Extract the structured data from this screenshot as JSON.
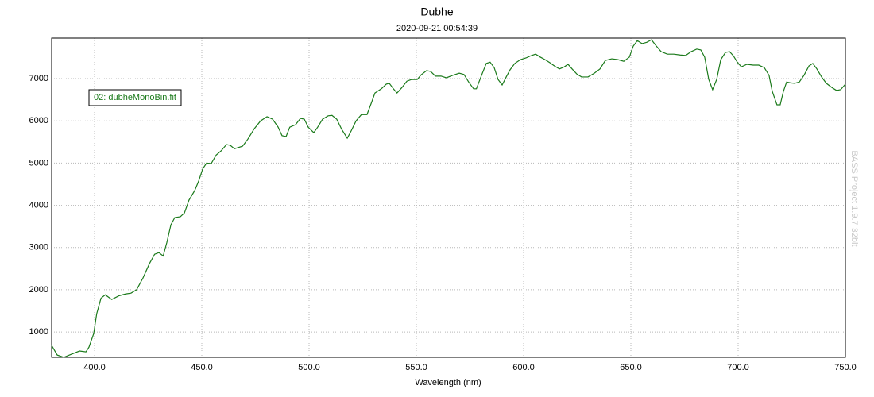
{
  "chart_data": {
    "type": "line",
    "title": "Dubhe",
    "subtitle": "2020-09-21 00:54:39",
    "x_label": "Wavelength (nm)",
    "annotation": "BASS Project 1.9.7 32bit",
    "xlim": [
      380,
      750
    ],
    "ylim": [
      400,
      7960
    ],
    "xticks": [
      {
        "value": 400,
        "label": "400.0"
      },
      {
        "value": 450,
        "label": "450.0"
      },
      {
        "value": 500,
        "label": "500.0"
      },
      {
        "value": 550,
        "label": "550.0"
      },
      {
        "value": 600,
        "label": "600.0"
      },
      {
        "value": 650,
        "label": "650.0"
      },
      {
        "value": 700,
        "label": "700.0"
      },
      {
        "value": 750,
        "label": "750.0"
      }
    ],
    "yticks": [
      1000,
      2000,
      3000,
      4000,
      5000,
      6000,
      7000
    ],
    "grid": true,
    "legend": "upper left",
    "x": [
      380,
      382.6,
      385.6,
      389,
      393,
      396,
      397.4,
      399.6,
      401,
      403,
      405,
      408,
      411.5,
      414.4,
      417,
      419.6,
      422.6,
      425.6,
      428,
      430,
      432,
      433.7,
      435.6,
      437.4,
      440,
      441.9,
      444,
      446.7,
      448.5,
      450.4,
      452.2,
      454.4,
      456.7,
      459,
      461.5,
      463.3,
      465.2,
      469,
      471.5,
      474.4,
      477.4,
      480.4,
      483,
      485.6,
      487.4,
      489.3,
      491,
      493.7,
      496,
      497.8,
      499.6,
      502.2,
      504,
      506.3,
      508.9,
      510.7,
      512.9,
      515.2,
      517.8,
      519.6,
      521.9,
      524.4,
      527,
      529,
      530.7,
      533.7,
      536,
      537.4,
      539.3,
      541,
      543.3,
      545.6,
      547.8,
      550.4,
      552.2,
      554.8,
      556.7,
      558.9,
      561.5,
      564,
      567,
      570,
      572.2,
      574.4,
      576.7,
      578,
      580.4,
      582.6,
      584.4,
      586.3,
      588.1,
      590,
      591.9,
      593.7,
      595.9,
      598.5,
      601.1,
      603.3,
      605.6,
      607.8,
      610,
      612.2,
      614.4,
      616.7,
      619,
      620.7,
      622.6,
      624.8,
      627,
      630,
      633,
      635.6,
      638.1,
      641.1,
      644,
      646.7,
      649.3,
      651.1,
      653,
      655.2,
      657.4,
      659.6,
      661.9,
      664.1,
      667,
      670,
      673,
      675.6,
      678.1,
      680.7,
      682.6,
      684.4,
      686.3,
      688.1,
      690,
      691.9,
      694.1,
      696,
      697.8,
      699.6,
      701.5,
      704.1,
      707,
      709.6,
      712.2,
      714.4,
      715.9,
      718.1,
      719.6,
      721.1,
      722.6,
      724.4,
      726.3,
      728.5,
      730.7,
      733,
      734.8,
      736.7,
      738.9,
      741.1,
      743.7,
      745.9,
      747.8,
      750
    ],
    "series": [
      {
        "name": "02: dubheMonoBin.fit",
        "color": "#1b7a1b",
        "values": [
          680,
          455,
          400,
          470,
          550,
          530,
          640,
          960,
          1430,
          1800,
          1880,
          1770,
          1860,
          1900,
          1920,
          2000,
          2280,
          2620,
          2840,
          2880,
          2800,
          3120,
          3540,
          3710,
          3730,
          3820,
          4120,
          4350,
          4570,
          4860,
          5000,
          4990,
          5190,
          5290,
          5440,
          5420,
          5340,
          5400,
          5570,
          5810,
          6000,
          6100,
          6040,
          5850,
          5650,
          5630,
          5850,
          5910,
          6060,
          6040,
          5850,
          5720,
          5850,
          6040,
          6120,
          6130,
          6040,
          5800,
          5590,
          5760,
          6000,
          6150,
          6150,
          6420,
          6660,
          6760,
          6870,
          6890,
          6760,
          6660,
          6790,
          6940,
          6980,
          6980,
          7090,
          7190,
          7170,
          7060,
          7060,
          7020,
          7080,
          7130,
          7100,
          6920,
          6760,
          6760,
          7080,
          7360,
          7390,
          7260,
          6980,
          6850,
          7040,
          7210,
          7360,
          7450,
          7490,
          7540,
          7580,
          7510,
          7450,
          7380,
          7300,
          7230,
          7280,
          7340,
          7230,
          7110,
          7040,
          7040,
          7130,
          7230,
          7430,
          7470,
          7450,
          7410,
          7510,
          7770,
          7900,
          7830,
          7860,
          7920,
          7770,
          7640,
          7580,
          7580,
          7560,
          7550,
          7640,
          7700,
          7680,
          7510,
          6980,
          6740,
          6980,
          7450,
          7620,
          7640,
          7540,
          7390,
          7280,
          7340,
          7320,
          7320,
          7260,
          7080,
          6700,
          6380,
          6380,
          6700,
          6920,
          6900,
          6890,
          6920,
          7080,
          7300,
          7360,
          7230,
          7040,
          6890,
          6790,
          6720,
          6740,
          6870
        ]
      }
    ]
  }
}
